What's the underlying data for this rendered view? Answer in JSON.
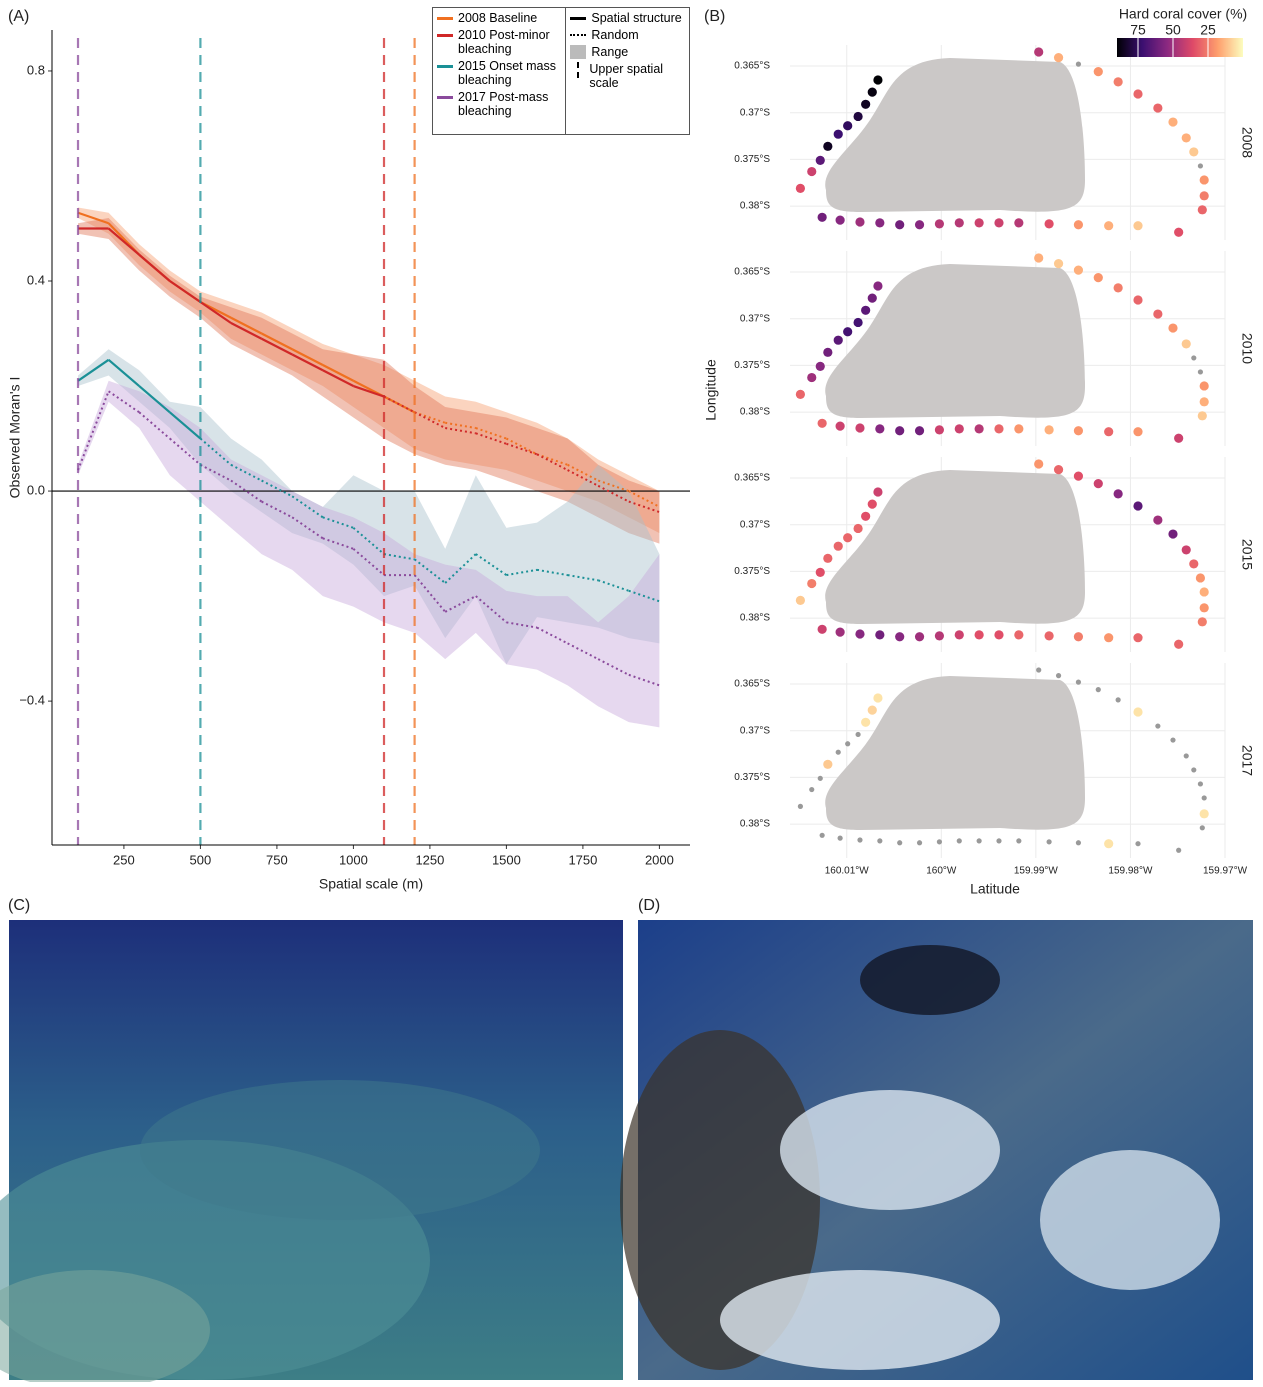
{
  "chart_data": [
    {
      "type": "line",
      "panel_label": "(A)",
      "x_label": "Spatial scale (m)",
      "y_label": "Observed Moran's I",
      "x": [
        100,
        200,
        300,
        400,
        500,
        600,
        700,
        800,
        900,
        1000,
        1100,
        1200,
        1300,
        1400,
        1500,
        1600,
        1700,
        1800,
        1900,
        2000
      ],
      "xlim": [
        15,
        2100
      ],
      "ylim": [
        -0.674,
        0.878
      ],
      "xticks": [
        250,
        500,
        750,
        1000,
        1250,
        1500,
        1750,
        2000
      ],
      "yticks": [
        {
          "value": -0.4,
          "label": "−0.4"
        },
        {
          "value": 0,
          "label": "0.0"
        },
        0.4,
        0.8
      ],
      "zero_line": true,
      "legend_keys": [
        "Spatial structure",
        "Random",
        "Range",
        "Upper spatial scale"
      ],
      "series": [
        {
          "name": "2008 Baseline",
          "color": "#f07020",
          "range_color": "#f6a070",
          "upper_scale": 1200,
          "values": [
            0.53,
            0.51,
            0.45,
            0.4,
            0.36,
            0.33,
            0.3,
            0.27,
            0.24,
            0.21,
            0.18,
            0.15,
            0.13,
            0.12,
            0.1,
            0.07,
            0.05,
            0.02,
            0.0,
            -0.03
          ],
          "range_lower": [
            0.52,
            0.49,
            0.43,
            0.38,
            0.34,
            0.29,
            0.26,
            0.23,
            0.2,
            0.16,
            0.12,
            0.08,
            0.06,
            0.05,
            0.04,
            0.02,
            0.0,
            -0.02,
            -0.05,
            -0.08
          ],
          "range_upper": [
            0.54,
            0.53,
            0.47,
            0.42,
            0.38,
            0.36,
            0.34,
            0.31,
            0.28,
            0.26,
            0.24,
            0.21,
            0.18,
            0.17,
            0.15,
            0.13,
            0.1,
            0.06,
            0.03,
            0.0
          ]
        },
        {
          "name": "2010 Post-minor bleaching",
          "color": "#d02828",
          "range_color": "#e07858",
          "upper_scale": 1100,
          "values": [
            0.5,
            0.5,
            0.45,
            0.4,
            0.36,
            0.32,
            0.29,
            0.26,
            0.23,
            0.2,
            0.18,
            0.15,
            0.12,
            0.11,
            0.09,
            0.07,
            0.04,
            0.01,
            -0.02,
            -0.04
          ],
          "range_lower": [
            0.49,
            0.48,
            0.42,
            0.37,
            0.33,
            0.28,
            0.25,
            0.22,
            0.18,
            0.14,
            0.1,
            0.07,
            0.05,
            0.04,
            0.02,
            0.0,
            -0.02,
            -0.05,
            -0.08,
            -0.1
          ],
          "range_upper": [
            0.51,
            0.52,
            0.46,
            0.41,
            0.37,
            0.35,
            0.33,
            0.3,
            0.27,
            0.26,
            0.25,
            0.2,
            0.16,
            0.15,
            0.14,
            0.12,
            0.1,
            0.05,
            0.02,
            0.0
          ]
        },
        {
          "name": "2015 Onset mass bleaching",
          "color": "#1a9096",
          "range_color": "#a8c0cc",
          "upper_scale": 500,
          "values": [
            0.21,
            0.25,
            0.2,
            0.15,
            0.1,
            0.05,
            0.02,
            -0.01,
            -0.05,
            -0.07,
            -0.12,
            -0.13,
            -0.175,
            -0.12,
            -0.16,
            -0.15,
            -0.16,
            -0.17,
            -0.19,
            -0.21
          ],
          "range_lower": [
            0.2,
            0.22,
            0.17,
            0.12,
            0.05,
            0.0,
            -0.04,
            -0.08,
            -0.1,
            -0.14,
            -0.2,
            -0.18,
            -0.28,
            -0.2,
            -0.33,
            -0.24,
            -0.25,
            -0.26,
            -0.28,
            -0.29
          ],
          "range_upper": [
            0.22,
            0.27,
            0.23,
            0.17,
            0.16,
            0.1,
            0.06,
            0.0,
            -0.03,
            0.03,
            0.0,
            0.0,
            -0.11,
            0.03,
            -0.07,
            -0.06,
            -0.02,
            0.05,
            0.0,
            -0.12
          ]
        },
        {
          "name": "2017 Post-mass bleaching",
          "color": "#8a4a9c",
          "range_color": "#c8a8dc",
          "upper_scale": 100,
          "values": [
            0.04,
            0.19,
            0.15,
            0.1,
            0.05,
            0.02,
            -0.02,
            -0.05,
            -0.09,
            -0.11,
            -0.16,
            -0.16,
            -0.23,
            -0.2,
            -0.25,
            -0.26,
            -0.29,
            -0.32,
            -0.35,
            -0.37
          ],
          "range_lower": [
            0.03,
            0.17,
            0.12,
            0.03,
            -0.02,
            -0.07,
            -0.12,
            -0.15,
            -0.2,
            -0.22,
            -0.25,
            -0.27,
            -0.32,
            -0.27,
            -0.33,
            -0.34,
            -0.37,
            -0.41,
            -0.44,
            -0.45
          ],
          "range_upper": [
            0.05,
            0.21,
            0.19,
            0.16,
            0.12,
            0.06,
            0.03,
            0.0,
            -0.03,
            -0.05,
            -0.08,
            -0.12,
            -0.14,
            -0.15,
            -0.19,
            -0.2,
            -0.2,
            -0.25,
            -0.2,
            -0.12
          ]
        }
      ]
    },
    {
      "type": "map",
      "panel_label": "(B)",
      "x_label": "Latitude",
      "y_label": "Longitude",
      "colorbar_title": "Hard coral cover (%)",
      "colorbar_lim": [
        0,
        90
      ],
      "colorbar_ticks": [
        75,
        50,
        25
      ],
      "colors": [
        "#fcfdbf",
        "#fe9f6d",
        "#de4968",
        "#8c2981",
        "#3b0f70",
        "#000004"
      ],
      "na_color": "#999999",
      "xlim": [
        -160.016,
        -159.97
      ],
      "ylim": [
        -0.38363,
        -0.36275
      ],
      "xticks": [
        {
          "value": -160.01,
          "label": "160.01°W"
        },
        {
          "value": -160.0,
          "label": "160°W"
        },
        {
          "value": -159.99,
          "label": "159.99°W"
        },
        {
          "value": -159.98,
          "label": "159.98°W"
        },
        {
          "value": -159.97,
          "label": "159.97°W"
        }
      ],
      "yticks": [
        {
          "value": -0.365,
          "label": "0.365°S"
        },
        {
          "value": -0.37,
          "label": "0.37°S"
        },
        {
          "value": -0.375,
          "label": "0.375°S"
        },
        {
          "value": -0.38,
          "label": "0.38°S"
        }
      ],
      "sites": {
        "lon": [
          -160.0067,
          -160.0073,
          -160.008,
          -160.0088,
          -160.0099,
          -160.0109,
          -160.012,
          -160.0128,
          -160.0137,
          -160.0149,
          -160.0126,
          -160.0107,
          -160.0086,
          -160.0065,
          -160.0044,
          -160.0023,
          -160.0002,
          -159.9981,
          -159.996,
          -159.9939,
          -159.9918,
          -159.9886,
          -159.9855,
          -159.9823,
          -159.9792,
          -159.9897,
          -159.9876,
          -159.9855,
          -159.9834,
          -159.9813,
          -159.9792,
          -159.9771,
          -159.9755,
          -159.9741,
          -159.9733,
          -159.9726,
          -159.9722,
          -159.9722,
          -159.9724,
          -159.9749
        ],
        "lat": [
          -0.3665,
          -0.3678,
          -0.3691,
          -0.3704,
          -0.3714,
          -0.3723,
          -0.3736,
          -0.3751,
          -0.3763,
          -0.3781,
          -0.3812,
          -0.3815,
          -0.3817,
          -0.3818,
          -0.382,
          -0.382,
          -0.3819,
          -0.3818,
          -0.3818,
          -0.3818,
          -0.3818,
          -0.3819,
          -0.382,
          -0.3821,
          -0.3821,
          -0.3635,
          -0.3641,
          -0.3648,
          -0.3656,
          -0.3667,
          -0.368,
          -0.3695,
          -0.371,
          -0.3727,
          -0.3742,
          -0.3757,
          -0.3772,
          -0.3789,
          -0.3804,
          -0.3828
        ]
      },
      "facets": [
        {
          "name": "2008",
          "cover": [
            90,
            88,
            85,
            80,
            75,
            72,
            85,
            65,
            40,
            35,
            60,
            55,
            50,
            55,
            60,
            55,
            45,
            45,
            40,
            40,
            45,
            35,
            20,
            15,
            10,
            45,
            15,
            null,
            20,
            25,
            30,
            30,
            15,
            15,
            10,
            null,
            20,
            25,
            30,
            35
          ]
        },
        {
          "name": "2010",
          "cover": [
            55,
            60,
            65,
            70,
            70,
            65,
            60,
            55,
            50,
            30,
            30,
            40,
            40,
            55,
            60,
            60,
            40,
            40,
            45,
            30,
            20,
            15,
            20,
            30,
            20,
            15,
            10,
            15,
            20,
            25,
            30,
            30,
            20,
            10,
            null,
            null,
            20,
            15,
            10,
            40
          ]
        },
        {
          "name": "2015",
          "cover": [
            40,
            35,
            35,
            30,
            30,
            30,
            30,
            35,
            25,
            10,
            40,
            50,
            55,
            60,
            55,
            50,
            45,
            40,
            35,
            35,
            30,
            30,
            25,
            20,
            30,
            20,
            30,
            35,
            40,
            55,
            65,
            50,
            60,
            40,
            30,
            20,
            15,
            20,
            25,
            30
          ]
        },
        {
          "name": "2017",
          "cover": [
            5,
            8,
            5,
            null,
            null,
            null,
            10,
            null,
            null,
            null,
            null,
            null,
            null,
            null,
            null,
            null,
            null,
            null,
            null,
            null,
            null,
            null,
            null,
            5,
            null,
            null,
            null,
            null,
            null,
            null,
            5,
            null,
            null,
            null,
            null,
            null,
            null,
            5,
            null,
            null
          ]
        }
      ]
    }
  ],
  "photos": [
    {
      "label": "(C)"
    },
    {
      "label": "(D)"
    }
  ]
}
